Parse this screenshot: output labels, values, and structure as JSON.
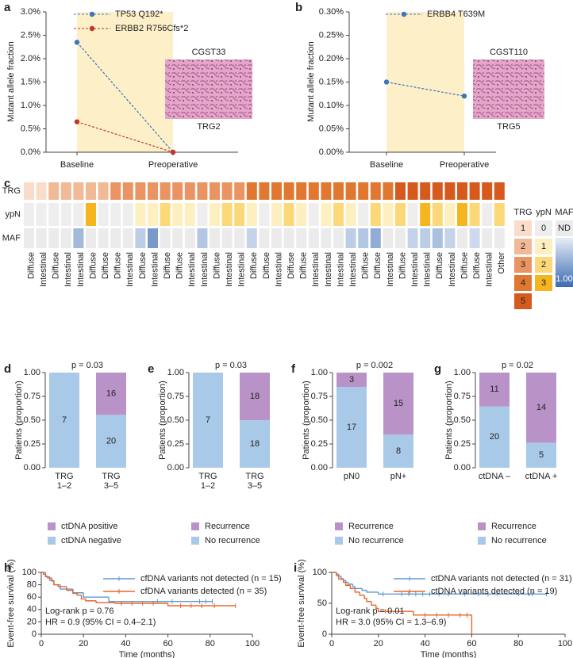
{
  "chart_data": [
    {
      "panel": "a",
      "type": "line",
      "ylabel": "Mutant allele fraction",
      "categories": [
        "Baseline",
        "Preoperative"
      ],
      "series": [
        {
          "name": "TP53 Q192*",
          "color": "#3d74c0",
          "values": [
            2.35,
            0
          ]
        },
        {
          "name": "ERBB2 R756Cfs*2",
          "color": "#c4352b",
          "values": [
            0.65,
            0
          ]
        }
      ],
      "ylim": [
        0,
        3
      ],
      "yticks": [
        {
          "value": 0,
          "label": "0.0%"
        },
        {
          "value": 0.5,
          "label": "0.5%"
        },
        {
          "value": 1,
          "label": "1.0%"
        },
        {
          "value": 1.5,
          "label": "1.5%"
        },
        {
          "value": 2,
          "label": "2.0%"
        },
        {
          "value": 2.5,
          "label": "2.5%"
        },
        {
          "value": 3,
          "label": "3.0%"
        }
      ],
      "band_color": "#fdf0c8",
      "image_title": "CGST33",
      "image_caption": "TRG2"
    },
    {
      "panel": "b",
      "type": "line",
      "ylabel": "Mutant allele fraction",
      "categories": [
        "Baseline",
        "Preoperative"
      ],
      "series": [
        {
          "name": "ERBB4 T639M",
          "color": "#3d74c0",
          "values": [
            0.15,
            0.12
          ]
        }
      ],
      "ylim": [
        0,
        0.3
      ],
      "yticks": [
        {
          "value": 0,
          "label": "0.00%"
        },
        {
          "value": 0.05,
          "label": "0.05%"
        },
        {
          "value": 0.1,
          "label": "0.10%"
        },
        {
          "value": 0.15,
          "label": "0.15%"
        },
        {
          "value": 0.2,
          "label": "0.20%"
        },
        {
          "value": 0.25,
          "label": "0.25%"
        },
        {
          "value": 0.3,
          "label": "0.30%"
        }
      ],
      "band_color": "#fdf0c8",
      "image_title": "CGST110",
      "image_caption": "TRG5"
    },
    {
      "panel": "c",
      "type": "heatmap",
      "rows": [
        "TRG",
        "ypN",
        "MAF"
      ],
      "categories": [
        "Diffuse",
        "Intestinal",
        "Diffuse",
        "Intestinal",
        "Intestinal",
        "Diffuse",
        "Diffuse",
        "Diffuse",
        "Intestinal",
        "Diffuse",
        "Intestinal",
        "Diffuse",
        "Diffuse",
        "Intestinal",
        "Intestinal",
        "Diffuse",
        "Intestinal",
        "Intestinal",
        "Diffuse",
        "Diffuse",
        "Intestinal",
        "Diffuse",
        "Diffuse",
        "Intestinal",
        "Intestinal",
        "Intestinal",
        "Intestinal",
        "Diffuse",
        "Diffuse",
        "Intestinal",
        "Diffuse",
        "Intestinal",
        "Intestinal",
        "Diffuse",
        "Intestinal",
        "Diffuse",
        "Diffuse",
        "Intestinal",
        "Other"
      ],
      "values": [
        [
          1,
          1,
          2,
          2,
          2,
          2,
          2,
          3,
          3,
          3,
          3,
          3,
          3,
          3,
          3,
          3,
          3,
          3,
          4,
          4,
          4,
          4,
          4,
          4,
          4,
          4,
          4,
          4,
          4,
          4,
          5,
          5,
          5,
          5,
          5,
          5,
          5,
          5,
          5
        ],
        [
          0,
          0,
          0,
          0,
          0,
          3,
          0,
          0,
          0,
          1,
          1,
          2,
          1,
          1,
          0,
          1,
          2,
          2,
          1,
          0,
          1,
          2,
          1,
          0,
          1,
          2,
          1,
          0,
          2,
          1,
          2,
          0,
          3,
          2,
          1,
          3,
          2,
          0,
          2
        ],
        [
          null,
          null,
          null,
          null,
          0.4,
          null,
          null,
          null,
          null,
          0.25,
          0.65,
          null,
          null,
          null,
          0.3,
          null,
          null,
          null,
          0.2,
          null,
          null,
          null,
          null,
          null,
          null,
          null,
          0.25,
          0.3,
          0.5,
          null,
          null,
          0.2,
          0.25,
          0.35,
          0.2,
          null,
          0.15,
          null,
          null
        ]
      ],
      "trg_levels": [
        1,
        2,
        3,
        4,
        5
      ],
      "trg_colors": [
        "#fadccb",
        "#f2b996",
        "#e99462",
        "#e17832",
        "#d65a1e"
      ],
      "ypn_levels": [
        0,
        1,
        2,
        3
      ],
      "ypn_colors": [
        "#eeeeee",
        "#fdefbf",
        "#fcd878",
        "#f5b51f"
      ],
      "maf_na": "ND",
      "maf_na_color": "#ebebeb",
      "maf_low_color": "#e6edf7",
      "maf_high_color": "#3c6bb2",
      "maf_max": {
        "value": 1,
        "label": "1.00"
      }
    },
    {
      "panel": "d",
      "type": "stacked_percent",
      "ylabel": "Patients (proportion)",
      "p_value": "p = 0.03",
      "categories": [
        [
          "TRG",
          "1–2"
        ],
        [
          "TRG",
          "3–5"
        ]
      ],
      "series": [
        {
          "name": "ctDNA negative",
          "color": "#a9c9e8",
          "values": [
            7,
            20
          ]
        },
        {
          "name": "ctDNA positive",
          "color": "#b993c8",
          "values": [
            0,
            16
          ]
        }
      ],
      "ylim": [
        0,
        1
      ],
      "yticks": [
        {
          "value": 0,
          "label": "0.00"
        },
        {
          "value": 0.25,
          "label": "0.25"
        },
        {
          "value": 0.5,
          "label": "0.50"
        },
        {
          "value": 0.75,
          "label": "0.75"
        },
        {
          "value": 1,
          "label": "1.00"
        }
      ]
    },
    {
      "panel": "e",
      "type": "stacked_percent",
      "ylabel": "Patients (proportion)",
      "p_value": "p = 0.03",
      "categories": [
        [
          "TRG",
          "1–2"
        ],
        [
          "TRG",
          "3–5"
        ]
      ],
      "series": [
        {
          "name": "No recurrence",
          "color": "#a9c9e8",
          "values": [
            7,
            18
          ]
        },
        {
          "name": "Recurrence",
          "color": "#b993c8",
          "values": [
            0,
            18
          ]
        }
      ],
      "ylim": [
        0,
        1
      ],
      "yticks": [
        {
          "value": 0,
          "label": "0.00"
        },
        {
          "value": 0.25,
          "label": "0.25"
        },
        {
          "value": 0.5,
          "label": "0.50"
        },
        {
          "value": 0.75,
          "label": "0.75"
        },
        {
          "value": 1,
          "label": "1.00"
        }
      ]
    },
    {
      "panel": "f",
      "type": "stacked_percent",
      "ylabel": "Patients (proportion)",
      "p_value": "p = 0.002",
      "categories": [
        [
          "pN0"
        ],
        [
          "pN+"
        ]
      ],
      "series": [
        {
          "name": "No recurrence",
          "color": "#a9c9e8",
          "values": [
            17,
            8
          ]
        },
        {
          "name": "Recurrence",
          "color": "#b993c8",
          "values": [
            3,
            15
          ]
        }
      ],
      "ylim": [
        0,
        1
      ],
      "yticks": [
        {
          "value": 0,
          "label": "0.00"
        },
        {
          "value": 0.25,
          "label": "0.25"
        },
        {
          "value": 0.5,
          "label": "0.50"
        },
        {
          "value": 0.75,
          "label": "0.75"
        },
        {
          "value": 1,
          "label": "1.00"
        }
      ]
    },
    {
      "panel": "g",
      "type": "stacked_percent",
      "ylabel": "Patients (proportion)",
      "p_value": "p = 0.02",
      "categories": [
        [
          "ctDNA –"
        ],
        [
          "ctDNA +"
        ]
      ],
      "series": [
        {
          "name": "No recurrence",
          "color": "#a9c9e8",
          "values": [
            20,
            5
          ]
        },
        {
          "name": "Recurrence",
          "color": "#b993c8",
          "values": [
            11,
            14
          ]
        }
      ],
      "ylim": [
        0,
        1
      ],
      "yticks": [
        {
          "value": 0,
          "label": "0.00"
        },
        {
          "value": 0.25,
          "label": "0.25"
        },
        {
          "value": 0.5,
          "label": "0.50"
        },
        {
          "value": 0.75,
          "label": "0.75"
        },
        {
          "value": 1,
          "label": "1.00"
        }
      ]
    },
    {
      "panel": "h",
      "type": "survival",
      "ylabel": "Event-free survival (%)",
      "xlabel": "Time (months)",
      "annotations": [
        "Log-rank p = 0.76",
        "HR = 0.9 (95% CI = 0.4–2.1)"
      ],
      "series": [
        {
          "name": "cfDNA variants not detected (n = 15)",
          "color": "#5b9bd5",
          "x": [
            0,
            2,
            4,
            6,
            9,
            15,
            20,
            32,
            81
          ],
          "values": [
            100,
            93,
            87,
            80,
            73,
            67,
            60,
            53,
            53
          ],
          "censor_x": [
            55,
            62,
            75,
            78,
            81
          ],
          "censor_values": [
            53,
            53,
            53,
            53,
            53
          ]
        },
        {
          "name": "cfDNA variants detected (n = 35)",
          "color": "#e8662a",
          "x": [
            0,
            1,
            2,
            3,
            5,
            6,
            8,
            12,
            15,
            17,
            19,
            21,
            26,
            35,
            60,
            92
          ],
          "values": [
            100,
            97,
            94,
            91,
            86,
            80,
            77,
            71,
            66,
            63,
            57,
            54,
            51,
            50,
            46,
            46
          ],
          "censor_x": [
            38,
            43,
            48,
            53,
            66,
            71,
            76,
            82,
            92
          ],
          "censor_values": [
            50,
            50,
            50,
            50,
            46,
            46,
            46,
            46,
            46
          ]
        }
      ],
      "xlim": [
        0,
        100
      ],
      "xticks": [
        0,
        20,
        40,
        60,
        80,
        100
      ],
      "ylim": [
        0,
        100
      ],
      "yticks": [
        0,
        20,
        40,
        60,
        80,
        100
      ]
    },
    {
      "panel": "i",
      "type": "survival",
      "ylabel": "Event-free survival (%)",
      "xlabel": "Time (months)",
      "annotations": [
        "Log-rank p = 0.01",
        "HR = 3.0 (95% CI = 1.3–6.9)"
      ],
      "series": [
        {
          "name": "ctDNA variants not detected (n = 31)",
          "color": "#5b9bd5",
          "x": [
            0,
            2,
            3,
            4,
            5,
            6,
            7,
            9,
            10,
            13,
            15,
            20,
            92
          ],
          "values": [
            100,
            97,
            94,
            90,
            87,
            84,
            81,
            77,
            74,
            71,
            68,
            65,
            65
          ],
          "censor_x": [
            22,
            30,
            33,
            36,
            39,
            42,
            46,
            50,
            57,
            63,
            67,
            71,
            80,
            86,
            92
          ],
          "censor_values": [
            65,
            65,
            65,
            65,
            65,
            65,
            65,
            65,
            65,
            65,
            65,
            65,
            65,
            65,
            65
          ]
        },
        {
          "name": "ctDNA variants detected (n = 19)",
          "color": "#e8662a",
          "x": [
            0,
            2,
            3,
            5,
            6,
            8,
            10,
            12,
            14,
            15,
            17,
            19,
            20,
            35,
            60
          ],
          "values": [
            100,
            95,
            89,
            84,
            79,
            74,
            68,
            63,
            58,
            53,
            47,
            42,
            37,
            31,
            0
          ],
          "censor_x": [
            23,
            40,
            45,
            50,
            55,
            58
          ],
          "censor_values": [
            37,
            31,
            31,
            31,
            31,
            31
          ]
        }
      ],
      "xlim": [
        0,
        100
      ],
      "xticks": [
        0,
        20,
        40,
        60,
        80,
        100
      ],
      "ylim": [
        0,
        100
      ],
      "yticks": [
        0,
        50,
        100
      ]
    }
  ]
}
